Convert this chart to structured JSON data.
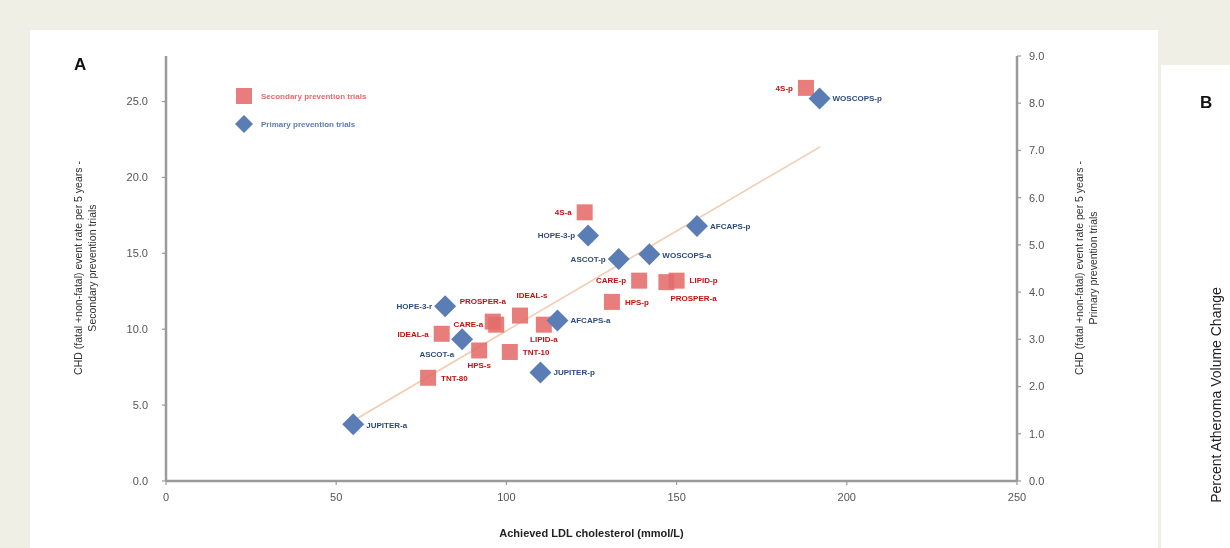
{
  "chart_data": [
    {
      "type": "scatter",
      "title": "A",
      "xlabel": "Achieved LDL cholesterol (mmol/L)",
      "ylabel": "CHD (fatal +non-fatal) event rate per 5 years -\nSecondary prevention trials",
      "y2label": "CHD (fatal +non-fatal) event rate per 5 years -\nPrimary prevention trials",
      "xlim": [
        0,
        250
      ],
      "xticks": [
        0,
        50,
        100,
        150,
        200,
        250
      ],
      "ylim": [
        0,
        28
      ],
      "yticks": [
        {
          "value": 0,
          "label": "0.0"
        },
        {
          "value": 5,
          "label": "5.0"
        },
        {
          "value": 10,
          "label": "10.0"
        },
        {
          "value": 15,
          "label": "15.0"
        },
        {
          "value": 20,
          "label": "20.0"
        },
        {
          "value": 25,
          "label": "25.0"
        }
      ],
      "y2lim": [
        0,
        9
      ],
      "y2ticks": [
        {
          "value": 0,
          "label": "0.0"
        },
        {
          "value": 1,
          "label": "1.0"
        },
        {
          "value": 2,
          "label": "2.0"
        },
        {
          "value": 3,
          "label": "3.0"
        },
        {
          "value": 4,
          "label": "4.0"
        },
        {
          "value": 5,
          "label": "5.0"
        },
        {
          "value": 6,
          "label": "6.0"
        },
        {
          "value": 7,
          "label": "7.0"
        },
        {
          "value": 8,
          "label": "8.0"
        },
        {
          "value": 9,
          "label": "9.0"
        }
      ],
      "legend": "top left",
      "series": [
        {
          "name": "Secondary prevention trials",
          "color": "#e46c6a",
          "marker": "square",
          "x": [
            188,
            123,
            139,
            147,
            150,
            131,
            104,
            97,
            96,
            111,
            81,
            92,
            101,
            77
          ],
          "values": [
            25.9,
            17.7,
            13.2,
            13.1,
            13.2,
            11.8,
            10.9,
            10.3,
            10.5,
            10.3,
            9.7,
            8.6,
            8.5,
            6.8
          ]
        },
        {
          "name": "Primary prevention trials",
          "color": "#5b7db5",
          "marker": "diamond",
          "axis": "y2",
          "x": [
            192,
            156,
            124,
            142,
            133,
            82,
            115,
            87,
            110,
            55
          ],
          "values": [
            8.1,
            5.4,
            5.2,
            4.8,
            4.7,
            3.7,
            3.4,
            3.0,
            2.3,
            1.2
          ]
        },
        {
          "type": "line",
          "color": "#f3cbb0",
          "x": [
            56,
            192
          ],
          "values": [
            4.1,
            22.0
          ]
        }
      ],
      "annotations": [
        {
          "text": "4S-p",
          "x": 188,
          "y": 25.9
        },
        {
          "text": "4S-a",
          "x": 123,
          "y": 17.7
        },
        {
          "text": "CARE-p",
          "x": 139,
          "y": 13.2
        },
        {
          "text": "PROSPER-a",
          "x": 147,
          "y": 13.1
        },
        {
          "text": "LIPID-p",
          "x": 150,
          "y": 13.2
        },
        {
          "text": "HPS-p",
          "x": 131,
          "y": 11.8
        },
        {
          "text": "IDEAL-s",
          "x": 104,
          "y": 10.9
        },
        {
          "text": "CARE-a",
          "x": 97,
          "y": 10.3
        },
        {
          "text": "PROSPER-a",
          "x": 96,
          "y": 10.5
        },
        {
          "text": "LIPID-a",
          "x": 111,
          "y": 10.3
        },
        {
          "text": "IDEAL-a",
          "x": 81,
          "y": 9.7
        },
        {
          "text": "HPS-s",
          "x": 92,
          "y": 8.6
        },
        {
          "text": "TNT-10",
          "x": 101,
          "y": 8.5
        },
        {
          "text": "TNT-80",
          "x": 77,
          "y": 6.8
        },
        {
          "text": "WOSCOPS-p",
          "x": 192,
          "y": 25.2
        },
        {
          "text": "AFCAPS-p",
          "x": 156,
          "y": 16.8
        },
        {
          "text": "HOPE-3-p",
          "x": 124,
          "y": 16.2
        },
        {
          "text": "WOSCOPS-a",
          "x": 142,
          "y": 14.9
        },
        {
          "text": "ASCOT-p",
          "x": 133,
          "y": 14.6
        },
        {
          "text": "HOPE-3-r",
          "x": 82,
          "y": 11.5
        },
        {
          "text": "AFCAPS-a",
          "x": 115,
          "y": 10.6
        },
        {
          "text": "ASCOT-a",
          "x": 87,
          "y": 9.3
        },
        {
          "text": "JUPITER-p",
          "x": 110,
          "y": 7.2
        },
        {
          "text": "JUPITER-a",
          "x": 55,
          "y": 3.7
        }
      ]
    },
    {
      "type": "other",
      "title": "B",
      "ylabel": "Percent Atheroma Volume Change"
    }
  ]
}
